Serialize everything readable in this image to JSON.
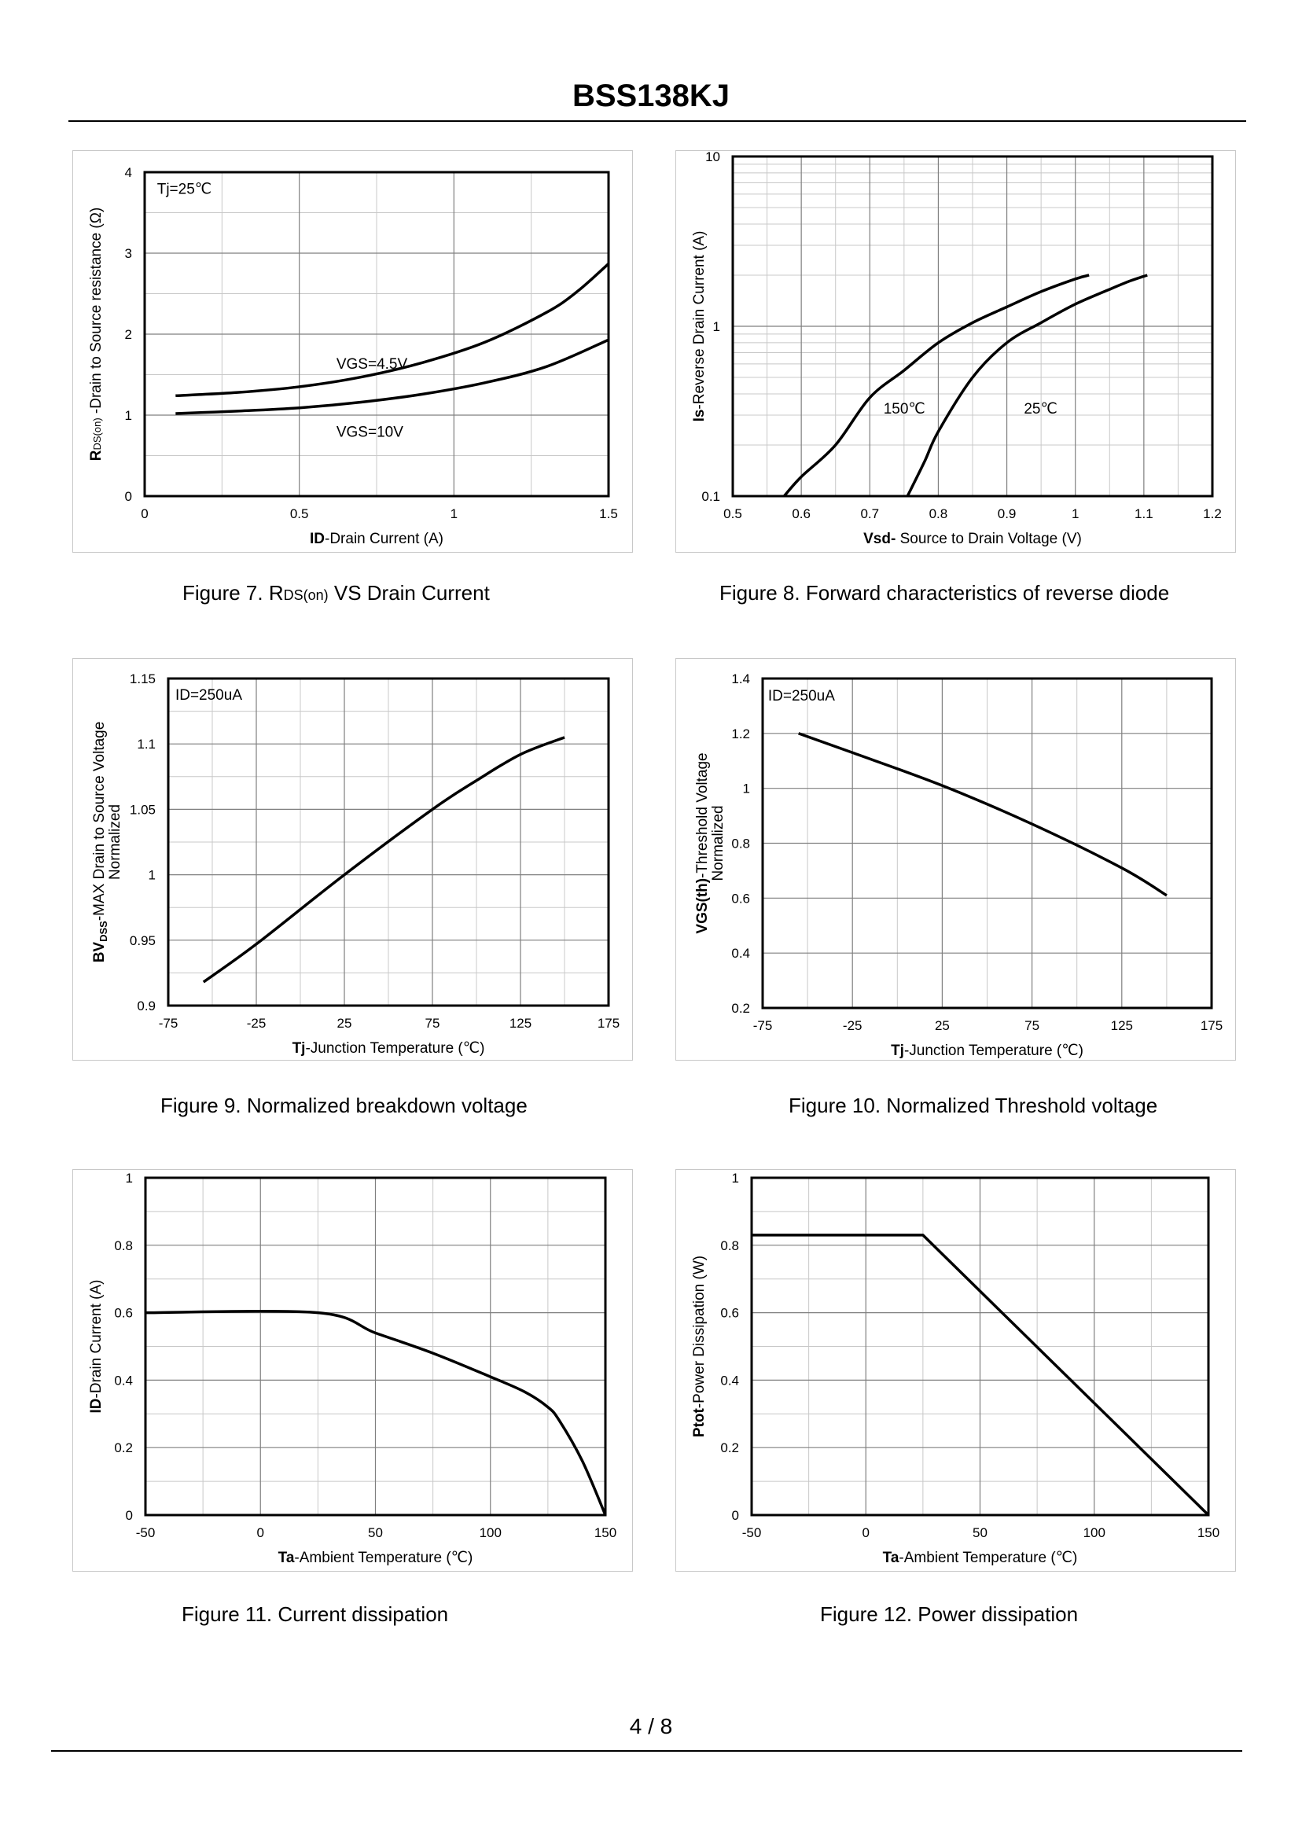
{
  "header": {
    "title": "BSS138KJ"
  },
  "footer": {
    "page": "4 / 8"
  },
  "chart_data": [
    {
      "id": "fig7",
      "type": "line",
      "caption": {
        "prefix": "Figure 7.  ",
        "sym": "R",
        "sub": "DS(on)",
        "suffix": " VS Drain Current"
      },
      "xlabel_bold": "ID",
      "xlabel_rest": "-Drain Current  (A)",
      "ylabel_bold": "R",
      "ylabel_sub": "DS(on)",
      "ylabel_rest": " -Drain to Source resistance (Ω)",
      "xlim": [
        0,
        1.5
      ],
      "ylim": [
        0,
        4
      ],
      "yscale": "linear",
      "xticks": [
        0,
        0.5,
        1,
        1.5
      ],
      "xtick_labels": [
        "0",
        "0.5",
        "1",
        "1.5"
      ],
      "yticks": [
        0,
        1,
        2,
        3,
        4
      ],
      "ytick_labels": [
        "0",
        "1",
        "2",
        "3",
        "4"
      ],
      "xminor": [
        0.25,
        0.75,
        1.25
      ],
      "yminor": [
        0.5,
        1.5,
        2.5,
        3.5
      ],
      "annotations": [
        {
          "text": "Tj=25℃",
          "x": 0.04,
          "y": 3.8
        },
        {
          "text": "VGS=4.5V",
          "x": 0.62,
          "y": 1.64
        },
        {
          "text": "VGS=10V",
          "x": 0.62,
          "y": 0.8
        }
      ],
      "series": [
        {
          "name": "VGS=4.5V",
          "x": [
            0.1,
            0.3,
            0.5,
            0.7,
            0.9,
            1.1,
            1.3,
            1.4,
            1.5
          ],
          "y": [
            1.24,
            1.28,
            1.35,
            1.47,
            1.65,
            1.9,
            2.27,
            2.53,
            2.87
          ]
        },
        {
          "name": "VGS=10V",
          "x": [
            0.1,
            0.3,
            0.5,
            0.7,
            0.9,
            1.1,
            1.3,
            1.5
          ],
          "y": [
            1.02,
            1.05,
            1.09,
            1.16,
            1.26,
            1.4,
            1.6,
            1.93
          ]
        }
      ]
    },
    {
      "id": "fig8",
      "type": "line",
      "caption": {
        "prefix": "Figure 8.  Forward characteristics of reverse diode"
      },
      "xlabel_bold": "Vsd-",
      "xlabel_rest": " Source to Drain Voltage (V)",
      "ylabel_bold": "Is",
      "ylabel_rest": "-Reverse  Drain Current (A)",
      "xlim": [
        0.5,
        1.2
      ],
      "ylim": [
        0.1,
        10
      ],
      "yscale": "log",
      "xticks": [
        0.5,
        0.6,
        0.7,
        0.8,
        0.9,
        1.0,
        1.1,
        1.2
      ],
      "xtick_labels": [
        "0.5",
        "0.6",
        "0.7",
        "0.8",
        "0.9",
        "1",
        "1.1",
        "1.2"
      ],
      "yticks": [
        0.1,
        1,
        10
      ],
      "ytick_labels": [
        "0.1",
        "1",
        "10"
      ],
      "xminor": [
        0.55,
        0.65,
        0.75,
        0.85,
        0.95,
        1.05,
        1.15
      ],
      "yminor": "log",
      "annotations": [
        {
          "text": "150℃",
          "x": 0.72,
          "y": 0.33
        },
        {
          "text": "25℃",
          "x": 0.925,
          "y": 0.33
        }
      ],
      "series": [
        {
          "name": "150℃",
          "x": [
            0.575,
            0.6,
            0.65,
            0.7,
            0.75,
            0.8,
            0.85,
            0.9,
            0.95,
            1.0,
            1.02
          ],
          "y": [
            0.1,
            0.13,
            0.2,
            0.38,
            0.55,
            0.8,
            1.05,
            1.3,
            1.6,
            1.9,
            2.0
          ]
        },
        {
          "name": "25℃",
          "x": [
            0.755,
            0.78,
            0.8,
            0.85,
            0.9,
            0.95,
            1.0,
            1.05,
            1.08,
            1.105
          ],
          "y": [
            0.1,
            0.16,
            0.24,
            0.5,
            0.8,
            1.05,
            1.35,
            1.65,
            1.85,
            2.0
          ]
        }
      ]
    },
    {
      "id": "fig9",
      "type": "line",
      "caption": {
        "prefix": "Figure 9.  Normalized breakdown voltage"
      },
      "xlabel_bold": "Tj",
      "xlabel_rest": "-Junction  Temperature  (℃)",
      "ylabel_bold": "BV",
      "ylabel_sub": "DSS",
      "ylabel_rest": "-MAX Drain to Source Voltage",
      "ylabel_line2": "Normalized",
      "xlim": [
        -75,
        175
      ],
      "ylim": [
        0.9,
        1.15
      ],
      "yscale": "linear",
      "xticks": [
        -75,
        -25,
        25,
        75,
        125,
        175
      ],
      "xtick_labels": [
        "-75",
        "-25",
        "25",
        "75",
        "125",
        "175"
      ],
      "yticks": [
        0.9,
        0.95,
        1.0,
        1.05,
        1.1,
        1.15
      ],
      "ytick_labels": [
        "0.9",
        "0.95",
        "1",
        "1.05",
        "1.1",
        "1.15"
      ],
      "xminor": [
        -50,
        0,
        50,
        100,
        150
      ],
      "yminor": [
        0.925,
        0.975,
        1.025,
        1.075,
        1.125
      ],
      "annotations": [
        {
          "text": "ID=250uA",
          "x": -71,
          "y": 1.138
        }
      ],
      "series": [
        {
          "name": "BVDSS",
          "x": [
            -55,
            -25,
            25,
            75,
            100,
            125,
            150
          ],
          "y": [
            0.918,
            0.947,
            1.0,
            1.05,
            1.072,
            1.092,
            1.105
          ]
        }
      ]
    },
    {
      "id": "fig10",
      "type": "line",
      "caption": {
        "prefix": "Figure 10.  Normalized Threshold voltage"
      },
      "xlabel_bold": "Tj",
      "xlabel_rest": "-Junction  Temperature  (℃)",
      "ylabel_bold": "VGS(th)",
      "ylabel_rest": "-Threshold  Voltage",
      "ylabel_line2": "Normalized",
      "xlim": [
        -75,
        175
      ],
      "ylim": [
        0.2,
        1.4
      ],
      "yscale": "linear",
      "xticks": [
        -75,
        -25,
        25,
        75,
        125,
        175
      ],
      "xtick_labels": [
        "-75",
        "-25",
        "25",
        "75",
        "125",
        "175"
      ],
      "yticks": [
        0.2,
        0.4,
        0.6,
        0.8,
        1.0,
        1.2,
        1.4
      ],
      "ytick_labels": [
        "0.2",
        "0.4",
        "0.6",
        "0.8",
        "1",
        "1.2",
        "1.4"
      ],
      "xminor": [
        -50,
        0,
        50,
        100,
        150
      ],
      "yminor": [],
      "annotations": [
        {
          "text": "ID=250uA",
          "x": -72,
          "y": 1.34
        }
      ],
      "series": [
        {
          "name": "VGS(th)",
          "x": [
            -55,
            -25,
            25,
            75,
            125,
            150
          ],
          "y": [
            1.2,
            1.13,
            1.01,
            0.87,
            0.71,
            0.61
          ]
        }
      ]
    },
    {
      "id": "fig11",
      "type": "line",
      "caption": {
        "prefix": "Figure 11.  Current dissipation"
      },
      "xlabel_bold": "Ta",
      "xlabel_rest": "-Ambient Temperature  (℃)",
      "ylabel_bold": "ID",
      "ylabel_rest": "-Drain Current (A)",
      "xlim": [
        -50,
        150
      ],
      "ylim": [
        0,
        1
      ],
      "yscale": "linear",
      "xticks": [
        -50,
        0,
        50,
        100,
        150
      ],
      "xtick_labels": [
        "-50",
        "0",
        "50",
        "100",
        "150"
      ],
      "yticks": [
        0,
        0.2,
        0.4,
        0.6,
        0.8,
        1.0
      ],
      "ytick_labels": [
        "0",
        "0.2",
        "0.4",
        "0.6",
        "0.8",
        "1"
      ],
      "xminor": [
        -25,
        25,
        75,
        125
      ],
      "yminor": [
        0.1,
        0.3,
        0.5,
        0.7,
        0.9
      ],
      "annotations": [],
      "series": [
        {
          "name": "ID",
          "x": [
            -50,
            25,
            50,
            75,
            100,
            115,
            125,
            130,
            140,
            150
          ],
          "y": [
            0.6,
            0.6,
            0.54,
            0.48,
            0.41,
            0.365,
            0.32,
            0.28,
            0.16,
            0.0
          ]
        }
      ]
    },
    {
      "id": "fig12",
      "type": "line",
      "caption": {
        "prefix": "Figure 12.  Power dissipation"
      },
      "xlabel_bold": "Ta",
      "xlabel_rest": "-Ambient Temperature  (℃)",
      "ylabel_bold": "Ptot",
      "ylabel_rest": "-Power Dissipation  (W)",
      "xlim": [
        -50,
        150
      ],
      "ylim": [
        0,
        1
      ],
      "yscale": "linear",
      "xticks": [
        -50,
        0,
        50,
        100,
        150
      ],
      "xtick_labels": [
        "-50",
        "0",
        "50",
        "100",
        "150"
      ],
      "yticks": [
        0,
        0.2,
        0.4,
        0.6,
        0.8,
        1.0
      ],
      "ytick_labels": [
        "0",
        "0.2",
        "0.4",
        "0.6",
        "0.8",
        "1"
      ],
      "xminor": [
        -25,
        25,
        75,
        125
      ],
      "yminor": [
        0.1,
        0.3,
        0.5,
        0.7,
        0.9
      ],
      "annotations": [],
      "series": [
        {
          "name": "Ptot",
          "x": [
            -50,
            25,
            150
          ],
          "y": [
            0.83,
            0.83,
            0.0
          ]
        }
      ]
    }
  ]
}
